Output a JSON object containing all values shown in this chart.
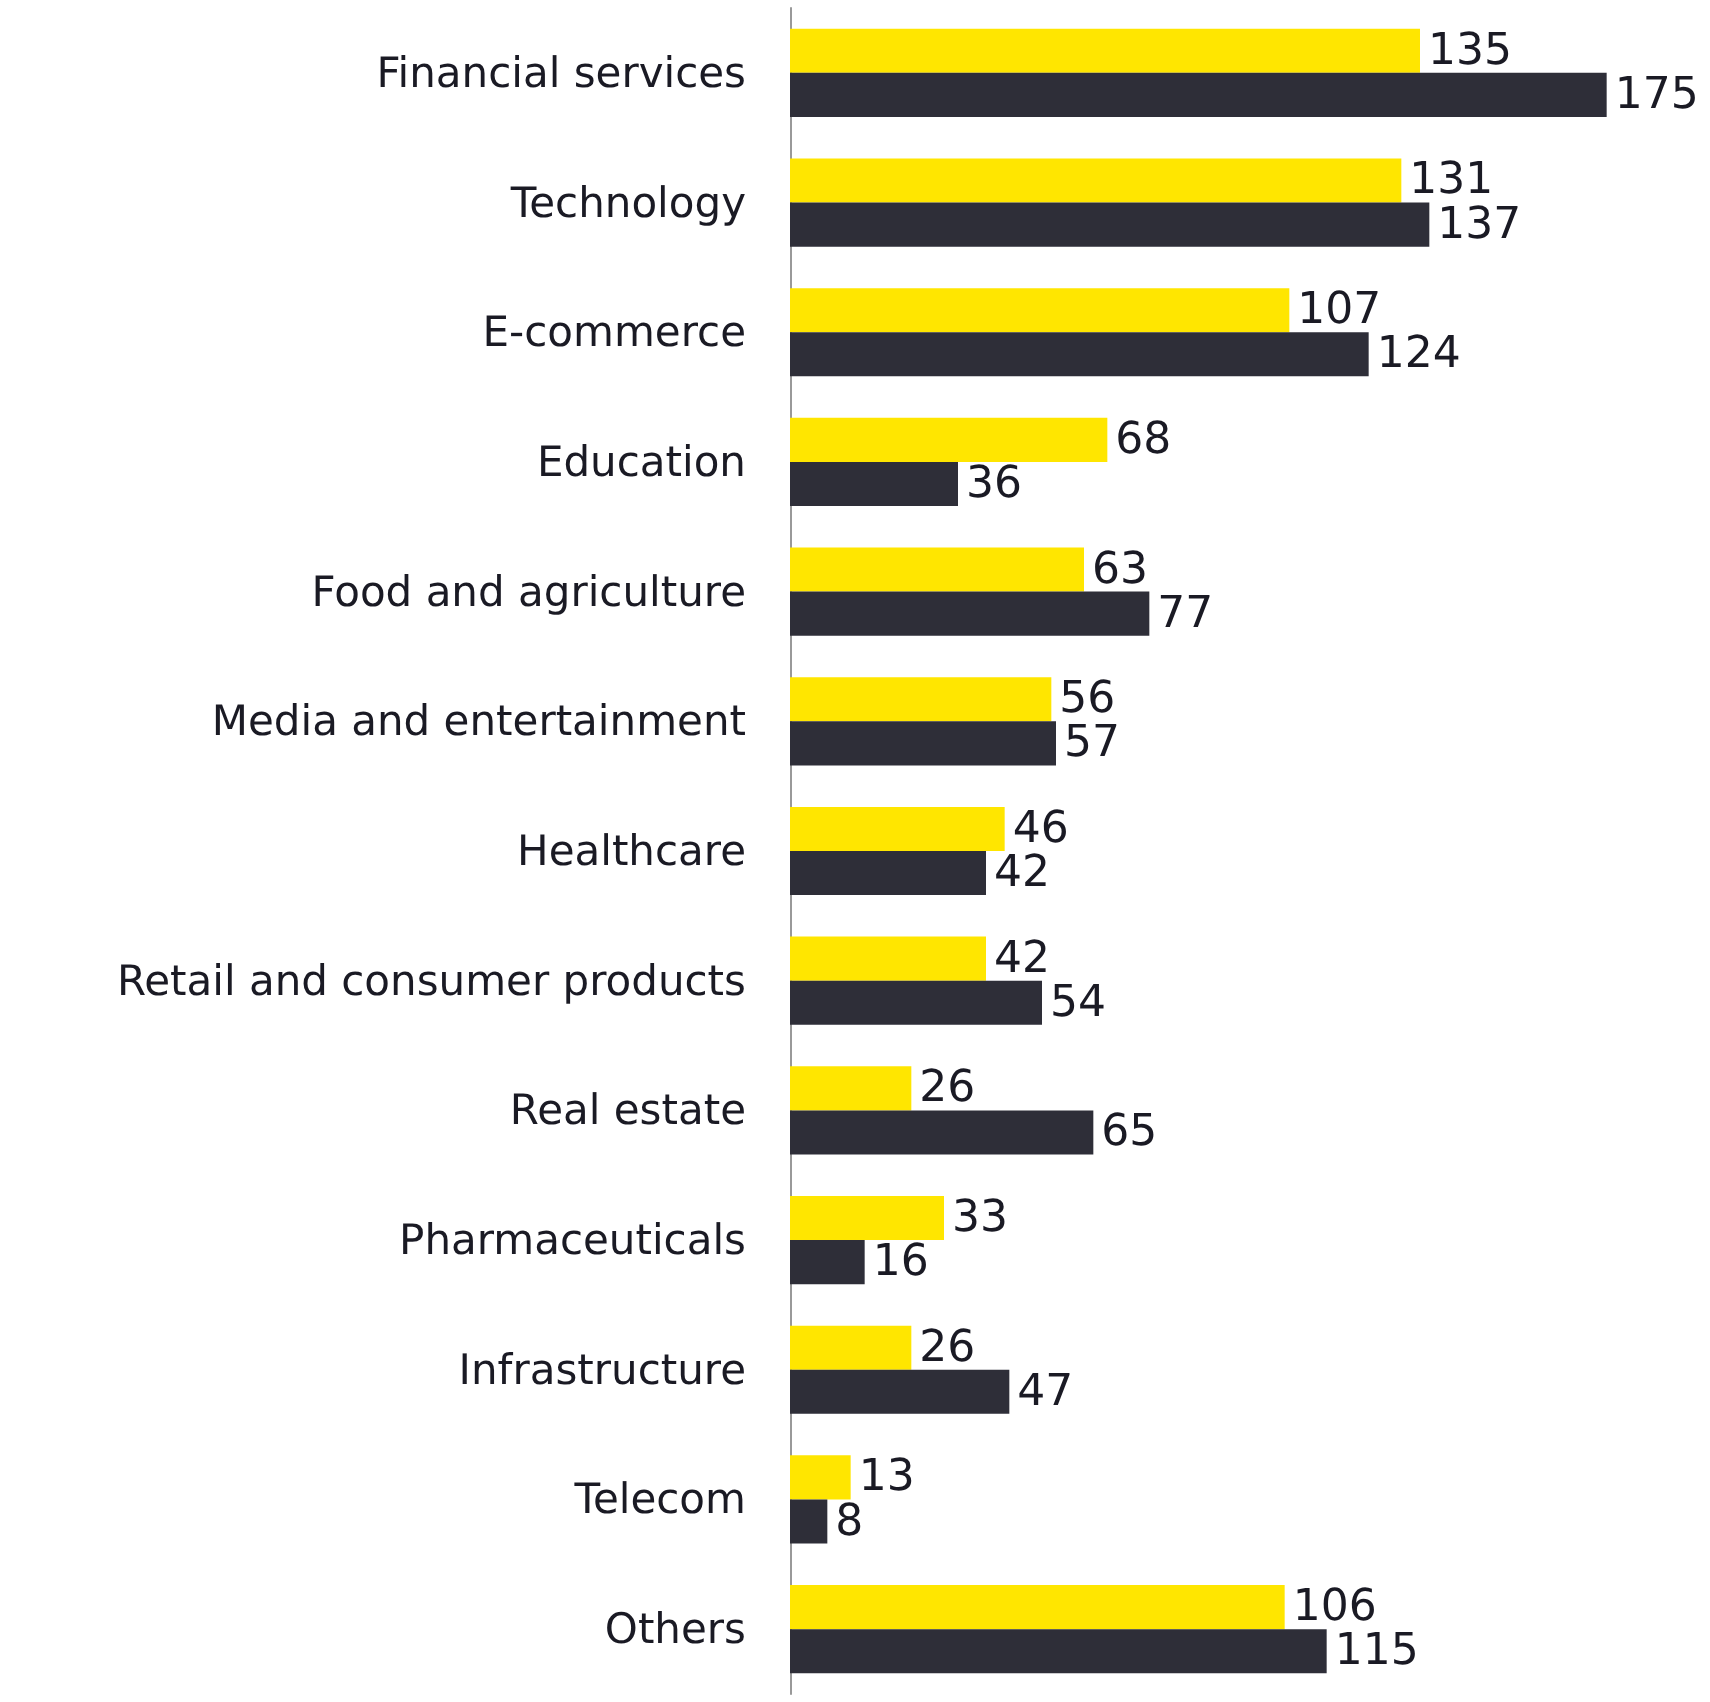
{
  "chart_data": {
    "type": "bar",
    "orientation": "horizontal",
    "data_labels": true,
    "categories": [
      "Financial services",
      "Technology",
      "E-commerce",
      "Education",
      "Food and agriculture",
      "Media and entertainment",
      "Healthcare",
      "Retail and consumer products",
      "Real estate",
      "Pharmaceuticals",
      "Infrastructure",
      "Telecom",
      "Others"
    ],
    "series": [
      {
        "color": "#ffe600",
        "values": [
          135,
          131,
          107,
          68,
          63,
          56,
          46,
          42,
          26,
          33,
          26,
          13,
          106
        ]
      },
      {
        "color": "#2e2e38",
        "values": [
          175,
          137,
          124,
          36,
          77,
          57,
          42,
          54,
          65,
          16,
          47,
          8,
          115
        ]
      }
    ]
  }
}
